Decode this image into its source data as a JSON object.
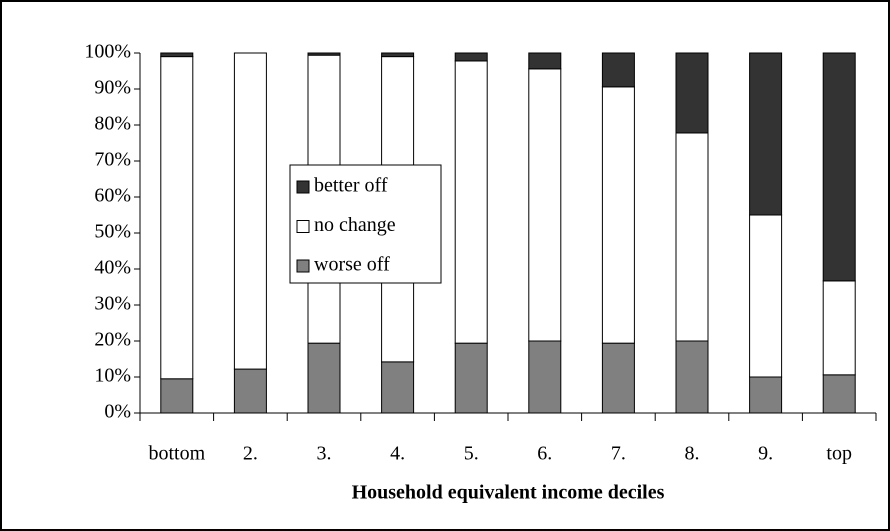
{
  "chart_data": {
    "type": "stacked_bar",
    "x_label": "Household equivalent income deciles",
    "categories": [
      "bottom",
      "2.",
      "3.",
      "4.",
      "5.",
      "6.",
      "7.",
      "8.",
      "9.",
      "top"
    ],
    "series": [
      {
        "name": "worse off",
        "color": "#808080",
        "values": [
          9.5,
          12.2,
          19.4,
          14.2,
          19.4,
          20,
          19.4,
          20,
          10,
          10.6
        ]
      },
      {
        "name": "no change",
        "color": "#ffffff",
        "values": [
          89.5,
          87.8,
          80,
          84.8,
          78.4,
          75.6,
          71.2,
          57.8,
          45,
          26.1
        ]
      },
      {
        "name": "better off",
        "color": "#333333",
        "values": [
          1,
          0,
          0.6,
          1,
          2.2,
          4.4,
          9.4,
          22.2,
          45,
          63.3
        ]
      }
    ],
    "ylim": [
      0,
      100
    ],
    "yticks": [
      {
        "value": 0,
        "label": "0%"
      },
      {
        "value": 10,
        "label": "10%"
      },
      {
        "value": 20,
        "label": "20%"
      },
      {
        "value": 30,
        "label": "30%"
      },
      {
        "value": 40,
        "label": "40%"
      },
      {
        "value": 50,
        "label": "50%"
      },
      {
        "value": 60,
        "label": "60%"
      },
      {
        "value": 70,
        "label": "70%"
      },
      {
        "value": 80,
        "label": "80%"
      },
      {
        "value": 90,
        "label": "90%"
      },
      {
        "value": 100,
        "label": "100%"
      }
    ]
  }
}
